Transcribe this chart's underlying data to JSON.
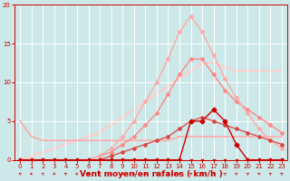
{
  "background_color": "#cce8e8",
  "grid_color": "#ffffff",
  "xlabel": "Vent moyen/en rafales ( km/h )",
  "xlabel_color": "#cc0000",
  "tick_color": "#cc0000",
  "x_ticks": [
    0,
    1,
    2,
    3,
    4,
    5,
    6,
    7,
    8,
    9,
    10,
    11,
    12,
    13,
    14,
    15,
    16,
    17,
    18,
    19,
    20,
    21,
    22,
    23
  ],
  "y_ticks": [
    0,
    5,
    10,
    15,
    20
  ],
  "xlim": [
    -0.5,
    23.5
  ],
  "ylim": [
    0,
    20
  ],
  "lines": [
    {
      "x": [
        0,
        1,
        2,
        3,
        4,
        5,
        6,
        7,
        8,
        9,
        10,
        11,
        12,
        13,
        14,
        15,
        16,
        17,
        18,
        19,
        20,
        21,
        22,
        23
      ],
      "y": [
        0,
        0,
        0,
        0,
        0,
        0,
        0,
        0,
        0,
        0,
        0,
        0,
        0,
        0,
        0,
        0,
        0,
        0,
        0,
        0,
        0,
        0,
        0,
        0
      ],
      "color": "#cc0000",
      "marker": "s",
      "markersize": 2,
      "linewidth": 0.8,
      "zorder": 5
    },
    {
      "x": [
        0,
        1,
        2,
        3,
        4,
        5,
        6,
        7,
        8,
        9,
        10,
        11,
        12,
        13,
        14,
        15,
        16,
        17,
        18,
        19,
        20,
        21,
        22,
        23
      ],
      "y": [
        0,
        0,
        0,
        0,
        0,
        0,
        0,
        0,
        0,
        0,
        0,
        0,
        0,
        0,
        0,
        5,
        5,
        6.5,
        5,
        2,
        0,
        0,
        0,
        0
      ],
      "color": "#cc0000",
      "marker": "D",
      "markersize": 2.5,
      "linewidth": 1.0,
      "zorder": 6
    },
    {
      "x": [
        0,
        1,
        2,
        3,
        4,
        5,
        6,
        7,
        8,
        9,
        10,
        11,
        12,
        13,
        14,
        15,
        16,
        17,
        18,
        19,
        20,
        21,
        22,
        23
      ],
      "y": [
        5,
        3,
        2.5,
        2.5,
        2.5,
        2.5,
        2.5,
        2.5,
        2.5,
        2.5,
        2.5,
        2.5,
        2.5,
        2.5,
        3,
        3,
        3,
        3,
        3,
        3,
        3,
        3,
        3,
        3
      ],
      "color": "#ffaaaa",
      "marker": null,
      "markersize": 0,
      "linewidth": 1.2,
      "zorder": 2
    },
    {
      "x": [
        0,
        1,
        2,
        3,
        4,
        5,
        6,
        7,
        8,
        9,
        10,
        11,
        12,
        13,
        14,
        15,
        16,
        17,
        18,
        19,
        20,
        21,
        22,
        23
      ],
      "y": [
        0,
        0,
        0,
        0,
        0,
        0,
        0,
        0,
        0.5,
        1.0,
        1.5,
        2.0,
        2.5,
        3.0,
        4.0,
        5.0,
        5.5,
        5.0,
        4.5,
        4.0,
        3.5,
        3.0,
        2.5,
        2.0
      ],
      "color": "#dd4444",
      "marker": "D",
      "markersize": 2,
      "linewidth": 0.9,
      "zorder": 4
    },
    {
      "x": [
        0,
        1,
        2,
        3,
        4,
        5,
        6,
        7,
        8,
        9,
        10,
        11,
        12,
        13,
        14,
        15,
        16,
        17,
        18,
        19,
        20,
        21,
        22,
        23
      ],
      "y": [
        0,
        0,
        0,
        0,
        0,
        0,
        0,
        0.5,
        1.0,
        2.0,
        3.0,
        4.5,
        6.0,
        8.5,
        11.0,
        13.0,
        13.0,
        11.0,
        9.0,
        7.5,
        6.5,
        5.5,
        4.5,
        3.5
      ],
      "color": "#ff8888",
      "marker": "D",
      "markersize": 2,
      "linewidth": 1.0,
      "zorder": 3
    },
    {
      "x": [
        0,
        1,
        2,
        3,
        4,
        5,
        6,
        7,
        8,
        9,
        10,
        11,
        12,
        13,
        14,
        15,
        16,
        17,
        18,
        19,
        20,
        21,
        22,
        23
      ],
      "y": [
        0,
        0,
        0,
        0,
        0,
        0,
        0,
        0.5,
        1.5,
        3.0,
        5.0,
        7.5,
        10.0,
        13.0,
        16.5,
        18.5,
        16.5,
        13.5,
        10.5,
        8.0,
        6.0,
        4.0,
        2.5,
        1.5
      ],
      "color": "#ffaaaa",
      "marker": "D",
      "markersize": 2,
      "linewidth": 1.0,
      "zorder": 3
    },
    {
      "x": [
        0,
        1,
        2,
        3,
        4,
        5,
        6,
        7,
        8,
        9,
        10,
        11,
        12,
        13,
        14,
        15,
        16,
        17,
        18,
        19,
        20,
        21,
        22,
        23
      ],
      "y": [
        0,
        0.5,
        1.0,
        1.5,
        2.0,
        2.5,
        3.0,
        3.5,
        4.5,
        5.5,
        6.5,
        7.5,
        8.5,
        9.5,
        10.5,
        11.5,
        12.5,
        12.5,
        12.0,
        11.5,
        11.5,
        11.5,
        11.5,
        11.5
      ],
      "color": "#ffcccc",
      "marker": null,
      "markersize": 0,
      "linewidth": 1.5,
      "zorder": 1
    }
  ],
  "arrow_angles": [
    225,
    270,
    225,
    315,
    225,
    270,
    270,
    270,
    315,
    45,
    45,
    45,
    90,
    90,
    135,
    135,
    90,
    90,
    135,
    135,
    135,
    225,
    225,
    225
  ]
}
